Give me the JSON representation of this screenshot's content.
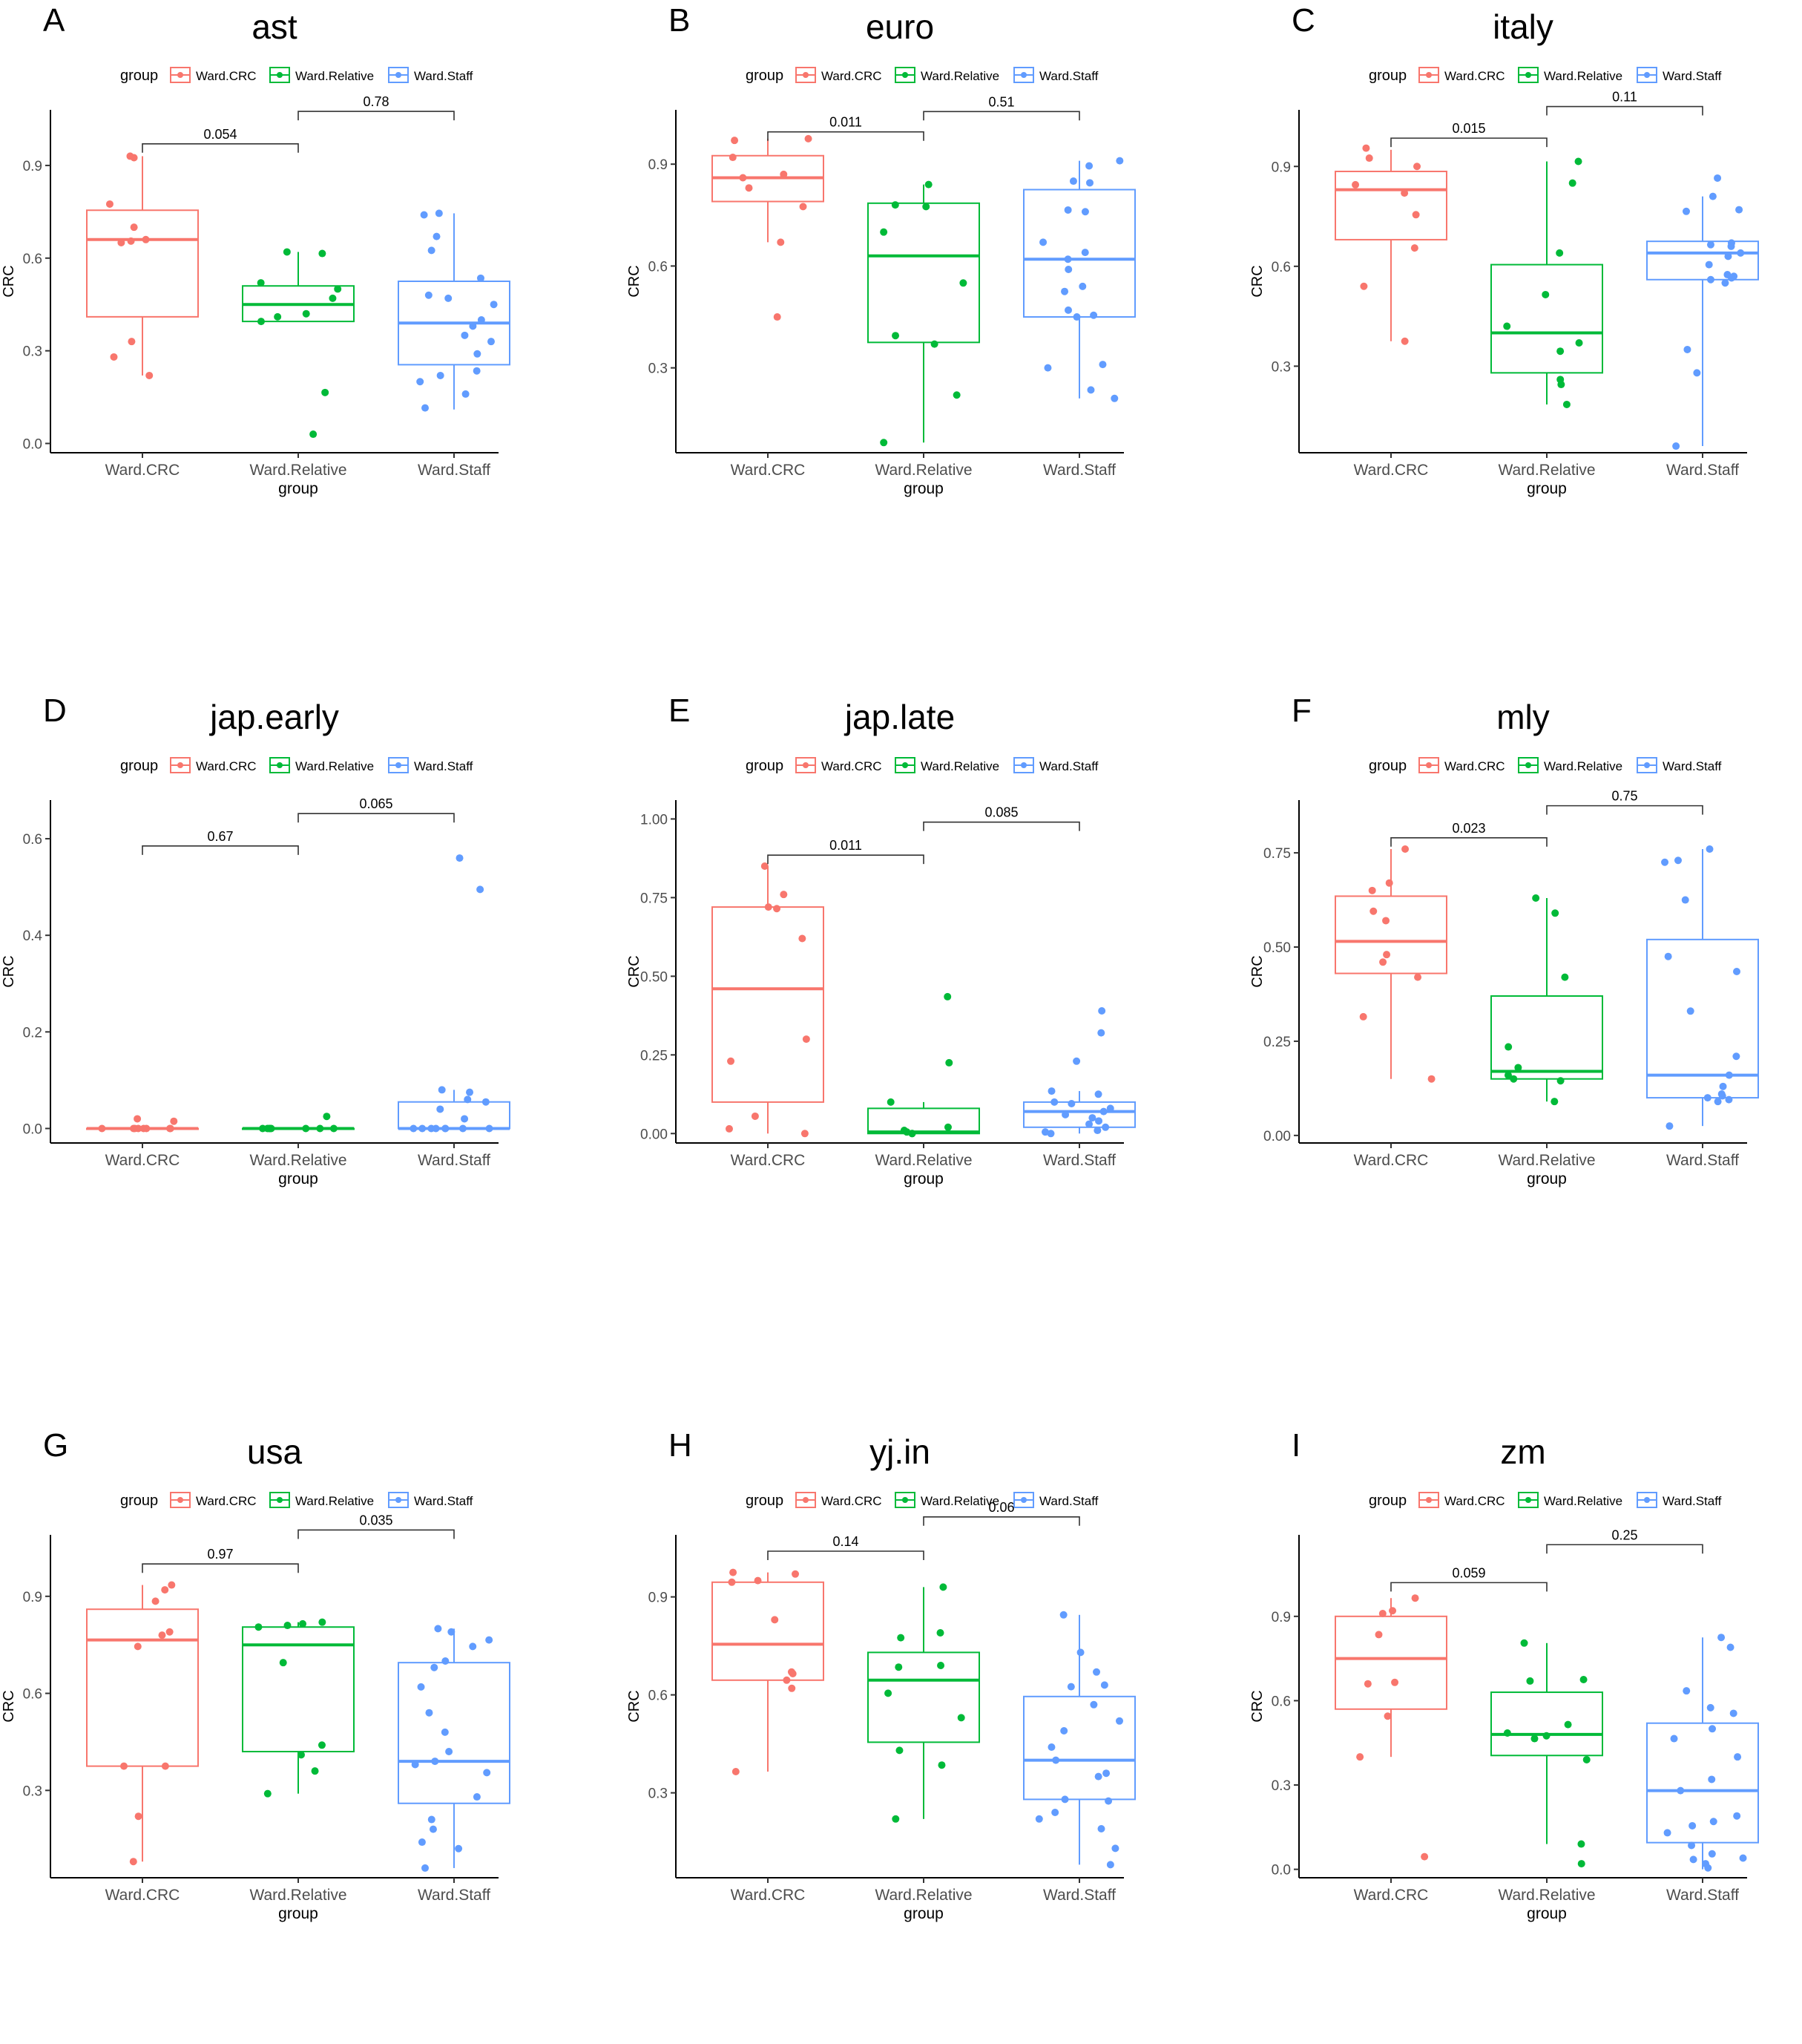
{
  "figure": {
    "legend_title": "group",
    "groups": [
      "Ward.CRC",
      "Ward.Relative",
      "Ward.Staff"
    ],
    "group_colors": [
      "#F8766D",
      "#00BA38",
      "#619CFF"
    ],
    "xlabel": "group",
    "ylabel": "CRC"
  },
  "chart_data": [
    {
      "panel": "A",
      "title": "ast",
      "type": "box",
      "categories": [
        "Ward.CRC",
        "Ward.Relative",
        "Ward.Staff"
      ],
      "ylim": [
        -0.03,
        1.08
      ],
      "yticks": [
        0.0,
        0.3,
        0.6,
        0.9
      ],
      "boxes": [
        {
          "q1": 0.41,
          "median": 0.66,
          "q3": 0.755,
          "wmin": 0.22,
          "wmax": 0.93
        },
        {
          "q1": 0.395,
          "median": 0.45,
          "q3": 0.51,
          "wmin": 0.395,
          "wmax": 0.62
        },
        {
          "q1": 0.255,
          "median": 0.39,
          "q3": 0.525,
          "wmin": 0.11,
          "wmax": 0.745
        }
      ],
      "points": [
        [
          0.93,
          0.925,
          0.775,
          0.7,
          0.66,
          0.655,
          0.65,
          0.33,
          0.28,
          0.22
        ],
        [
          0.62,
          0.615,
          0.52,
          0.5,
          0.47,
          0.42,
          0.41,
          0.395,
          0.165,
          0.03
        ],
        [
          0.745,
          0.74,
          0.67,
          0.625,
          0.535,
          0.48,
          0.47,
          0.45,
          0.4,
          0.38,
          0.35,
          0.33,
          0.29,
          0.235,
          0.22,
          0.2,
          0.16,
          0.115
        ]
      ],
      "comparisons": [
        {
          "from": 0,
          "to": 1,
          "label": "0.054",
          "y": 0.97
        },
        {
          "from": 1,
          "to": 2,
          "label": "0.78",
          "y": 1.075
        }
      ]
    },
    {
      "panel": "B",
      "title": "euro",
      "type": "box",
      "categories": [
        "Ward.CRC",
        "Ward.Relative",
        "Ward.Staff"
      ],
      "ylim": [
        0.05,
        1.06
      ],
      "yticks": [
        0.3,
        0.6,
        0.9
      ],
      "boxes": [
        {
          "q1": 0.79,
          "median": 0.86,
          "q3": 0.925,
          "wmin": 0.67,
          "wmax": 0.975
        },
        {
          "q1": 0.375,
          "median": 0.63,
          "q3": 0.785,
          "wmin": 0.08,
          "wmax": 0.84
        },
        {
          "q1": 0.45,
          "median": 0.62,
          "q3": 0.825,
          "wmin": 0.21,
          "wmax": 0.91
        }
      ],
      "points": [
        [
          0.975,
          0.97,
          0.92,
          0.87,
          0.86,
          0.83,
          0.775,
          0.67,
          0.45
        ],
        [
          0.84,
          0.78,
          0.775,
          0.7,
          0.55,
          0.395,
          0.37,
          0.22,
          0.08
        ],
        [
          0.91,
          0.895,
          0.85,
          0.845,
          0.765,
          0.76,
          0.67,
          0.64,
          0.62,
          0.59,
          0.54,
          0.525,
          0.47,
          0.455,
          0.45,
          0.31,
          0.3,
          0.235,
          0.21
        ]
      ],
      "comparisons": [
        {
          "from": 0,
          "to": 1,
          "label": "0.011",
          "y": 0.995
        },
        {
          "from": 1,
          "to": 2,
          "label": "0.51",
          "y": 1.055
        }
      ]
    },
    {
      "panel": "C",
      "title": "italy",
      "type": "box",
      "categories": [
        "Ward.CRC",
        "Ward.Relative",
        "Ward.Staff"
      ],
      "ylim": [
        0.04,
        1.07
      ],
      "yticks": [
        0.3,
        0.6,
        0.9
      ],
      "boxes": [
        {
          "q1": 0.68,
          "median": 0.83,
          "q3": 0.885,
          "wmin": 0.375,
          "wmax": 0.95
        },
        {
          "q1": 0.28,
          "median": 0.4,
          "q3": 0.605,
          "wmin": 0.185,
          "wmax": 0.915
        },
        {
          "q1": 0.56,
          "median": 0.64,
          "q3": 0.675,
          "wmin": 0.06,
          "wmax": 0.81
        }
      ],
      "points": [
        [
          0.955,
          0.925,
          0.9,
          0.845,
          0.82,
          0.755,
          0.655,
          0.54,
          0.375
        ],
        [
          0.915,
          0.85,
          0.64,
          0.515,
          0.42,
          0.37,
          0.345,
          0.26,
          0.245,
          0.185
        ],
        [
          0.865,
          0.81,
          0.77,
          0.765,
          0.67,
          0.665,
          0.66,
          0.64,
          0.63,
          0.605,
          0.575,
          0.57,
          0.565,
          0.56,
          0.55,
          0.35,
          0.28,
          0.06
        ]
      ],
      "comparisons": [
        {
          "from": 0,
          "to": 1,
          "label": "0.015",
          "y": 0.985
        },
        {
          "from": 1,
          "to": 2,
          "label": "0.11",
          "y": 1.08
        }
      ]
    },
    {
      "panel": "D",
      "title": "jap.early",
      "type": "box",
      "categories": [
        "Ward.CRC",
        "Ward.Relative",
        "Ward.Staff"
      ],
      "ylim": [
        -0.03,
        0.68
      ],
      "yticks": [
        0.0,
        0.2,
        0.4,
        0.6
      ],
      "boxes": [
        {
          "q1": 0.0,
          "median": 0.0,
          "q3": 0.0,
          "wmin": 0.0,
          "wmax": 0.0
        },
        {
          "q1": 0.0,
          "median": 0.0,
          "q3": 0.0,
          "wmin": 0.0,
          "wmax": 0.0
        },
        {
          "q1": 0.0,
          "median": 0.0,
          "q3": 0.055,
          "wmin": 0.0,
          "wmax": 0.08
        }
      ],
      "points": [
        [
          0.02,
          0.015,
          0.0,
          0.0,
          0.0,
          0.0,
          0.0,
          0.0,
          0.0,
          0.0
        ],
        [
          0.025,
          0.0,
          0.0,
          0.0,
          0.0,
          0.0,
          0.0,
          0.0,
          0.0
        ],
        [
          0.56,
          0.495,
          0.08,
          0.075,
          0.06,
          0.055,
          0.04,
          0.02,
          0.0,
          0.0,
          0.0,
          0.0,
          0.0,
          0.0,
          0.0,
          0.0
        ]
      ],
      "comparisons": [
        {
          "from": 0,
          "to": 1,
          "label": "0.67",
          "y": 0.585
        },
        {
          "from": 1,
          "to": 2,
          "label": "0.065",
          "y": 0.652
        }
      ]
    },
    {
      "panel": "E",
      "title": "jap.late",
      "type": "box",
      "categories": [
        "Ward.CRC",
        "Ward.Relative",
        "Ward.Staff"
      ],
      "ylim": [
        -0.03,
        1.06
      ],
      "yticks": [
        0.0,
        0.25,
        0.5,
        0.75,
        1.0
      ],
      "yticklabels": [
        "0.00",
        "0.25",
        "0.50",
        "0.75",
        "1.00"
      ],
      "boxes": [
        {
          "q1": 0.1,
          "median": 0.46,
          "q3": 0.72,
          "wmin": 0.0,
          "wmax": 0.85
        },
        {
          "q1": 0.0,
          "median": 0.005,
          "q3": 0.08,
          "wmin": 0.0,
          "wmax": 0.1
        },
        {
          "q1": 0.02,
          "median": 0.07,
          "q3": 0.1,
          "wmin": 0.0,
          "wmax": 0.135
        }
      ],
      "points": [
        [
          0.85,
          0.76,
          0.72,
          0.715,
          0.62,
          0.3,
          0.23,
          0.055,
          0.015,
          0.0
        ],
        [
          0.435,
          0.225,
          0.1,
          0.02,
          0.01,
          0.005,
          0.0,
          0.0
        ],
        [
          0.39,
          0.32,
          0.23,
          0.135,
          0.125,
          0.1,
          0.095,
          0.08,
          0.07,
          0.06,
          0.05,
          0.04,
          0.03,
          0.02,
          0.01,
          0.005,
          0.0
        ]
      ],
      "comparisons": [
        {
          "from": 0,
          "to": 1,
          "label": "0.011",
          "y": 0.885
        },
        {
          "from": 1,
          "to": 2,
          "label": "0.085",
          "y": 0.99
        }
      ]
    },
    {
      "panel": "F",
      "title": "mly",
      "type": "box",
      "categories": [
        "Ward.CRC",
        "Ward.Relative",
        "Ward.Staff"
      ],
      "ylim": [
        -0.02,
        0.89
      ],
      "yticks": [
        0.0,
        0.25,
        0.5,
        0.75
      ],
      "yticklabels": [
        "0.00",
        "0.25",
        "0.50",
        "0.75"
      ],
      "boxes": [
        {
          "q1": 0.43,
          "median": 0.515,
          "q3": 0.635,
          "wmin": 0.15,
          "wmax": 0.76
        },
        {
          "q1": 0.15,
          "median": 0.17,
          "q3": 0.37,
          "wmin": 0.09,
          "wmax": 0.63
        },
        {
          "q1": 0.1,
          "median": 0.16,
          "q3": 0.52,
          "wmin": 0.025,
          "wmax": 0.76
        }
      ],
      "points": [
        [
          0.76,
          0.67,
          0.65,
          0.595,
          0.57,
          0.48,
          0.46,
          0.42,
          0.315,
          0.15
        ],
        [
          0.63,
          0.59,
          0.42,
          0.235,
          0.18,
          0.16,
          0.15,
          0.145,
          0.09
        ],
        [
          0.76,
          0.73,
          0.725,
          0.625,
          0.475,
          0.435,
          0.33,
          0.21,
          0.16,
          0.13,
          0.11,
          0.105,
          0.1,
          0.095,
          0.09,
          0.025
        ]
      ],
      "comparisons": [
        {
          "from": 0,
          "to": 1,
          "label": "0.023",
          "y": 0.79
        },
        {
          "from": 1,
          "to": 2,
          "label": "0.75",
          "y": 0.875
        }
      ]
    },
    {
      "panel": "G",
      "title": "usa",
      "type": "box",
      "categories": [
        "Ward.CRC",
        "Ward.Relative",
        "Ward.Staff"
      ],
      "ylim": [
        0.03,
        1.09
      ],
      "yticks": [
        0.3,
        0.6,
        0.9
      ],
      "boxes": [
        {
          "q1": 0.375,
          "median": 0.765,
          "q3": 0.86,
          "wmin": 0.08,
          "wmax": 0.935
        },
        {
          "q1": 0.42,
          "median": 0.75,
          "q3": 0.805,
          "wmin": 0.29,
          "wmax": 0.82
        },
        {
          "q1": 0.26,
          "median": 0.39,
          "q3": 0.695,
          "wmin": 0.06,
          "wmax": 0.8
        }
      ],
      "points": [
        [
          0.935,
          0.92,
          0.885,
          0.79,
          0.78,
          0.745,
          0.375,
          0.375,
          0.22,
          0.08
        ],
        [
          0.82,
          0.815,
          0.81,
          0.805,
          0.695,
          0.44,
          0.41,
          0.36,
          0.29
        ],
        [
          0.8,
          0.79,
          0.765,
          0.745,
          0.7,
          0.68,
          0.62,
          0.54,
          0.48,
          0.42,
          0.39,
          0.38,
          0.355,
          0.28,
          0.21,
          0.18,
          0.14,
          0.12,
          0.06
        ]
      ],
      "comparisons": [
        {
          "from": 0,
          "to": 1,
          "label": "0.97",
          "y": 1.0
        },
        {
          "from": 1,
          "to": 2,
          "label": "0.035",
          "y": 1.105
        }
      ]
    },
    {
      "panel": "H",
      "title": "yj.in",
      "type": "box",
      "categories": [
        "Ward.CRC",
        "Ward.Relative",
        "Ward.Staff"
      ],
      "ylim": [
        0.04,
        1.09
      ],
      "yticks": [
        0.3,
        0.6,
        0.9
      ],
      "boxes": [
        {
          "q1": 0.645,
          "median": 0.755,
          "q3": 0.945,
          "wmin": 0.365,
          "wmax": 0.975
        },
        {
          "q1": 0.455,
          "median": 0.645,
          "q3": 0.73,
          "wmin": 0.22,
          "wmax": 0.93
        },
        {
          "q1": 0.28,
          "median": 0.4,
          "q3": 0.595,
          "wmin": 0.08,
          "wmax": 0.845
        }
      ],
      "points": [
        [
          0.975,
          0.97,
          0.95,
          0.945,
          0.83,
          0.67,
          0.665,
          0.645,
          0.62,
          0.365
        ],
        [
          0.93,
          0.79,
          0.775,
          0.69,
          0.685,
          0.605,
          0.53,
          0.43,
          0.385,
          0.22
        ],
        [
          0.845,
          0.73,
          0.67,
          0.63,
          0.625,
          0.57,
          0.52,
          0.49,
          0.44,
          0.4,
          0.36,
          0.35,
          0.28,
          0.275,
          0.24,
          0.22,
          0.19,
          0.13,
          0.08
        ]
      ],
      "comparisons": [
        {
          "from": 0,
          "to": 1,
          "label": "0.14",
          "y": 1.04
        },
        {
          "from": 1,
          "to": 2,
          "label": "0.06",
          "y": 1.145
        }
      ]
    },
    {
      "panel": "I",
      "title": "zm",
      "type": "box",
      "categories": [
        "Ward.CRC",
        "Ward.Relative",
        "Ward.Staff"
      ],
      "ylim": [
        -0.03,
        1.19
      ],
      "yticks": [
        0.0,
        0.3,
        0.6,
        0.9
      ],
      "boxes": [
        {
          "q1": 0.57,
          "median": 0.75,
          "q3": 0.9,
          "wmin": 0.4,
          "wmax": 0.965
        },
        {
          "q1": 0.405,
          "median": 0.48,
          "q3": 0.63,
          "wmin": 0.09,
          "wmax": 0.805
        },
        {
          "q1": 0.095,
          "median": 0.28,
          "q3": 0.52,
          "wmin": 0.0,
          "wmax": 0.825
        }
      ],
      "points": [
        [
          0.965,
          0.92,
          0.91,
          0.835,
          0.665,
          0.66,
          0.545,
          0.4,
          0.045
        ],
        [
          0.805,
          0.675,
          0.67,
          0.515,
          0.485,
          0.475,
          0.465,
          0.39,
          0.09,
          0.02
        ],
        [
          0.825,
          0.79,
          0.635,
          0.575,
          0.555,
          0.5,
          0.465,
          0.4,
          0.32,
          0.28,
          0.19,
          0.17,
          0.155,
          0.13,
          0.085,
          0.055,
          0.04,
          0.035,
          0.02,
          0.005
        ]
      ],
      "comparisons": [
        {
          "from": 0,
          "to": 1,
          "label": "0.059",
          "y": 1.02
        },
        {
          "from": 1,
          "to": 2,
          "label": "0.25",
          "y": 1.155
        }
      ]
    }
  ]
}
